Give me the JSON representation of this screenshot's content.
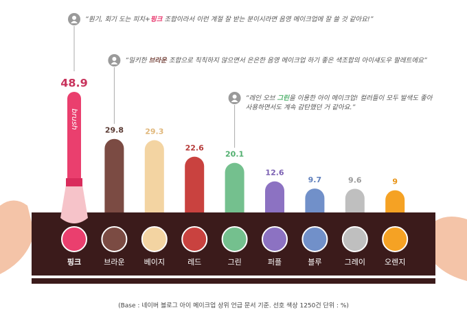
{
  "chart_data": {
    "type": "bar",
    "categories": [
      "핑크",
      "브라운",
      "베이지",
      "레드",
      "그린",
      "퍼플",
      "블루",
      "그레이",
      "오렌지"
    ],
    "values": [
      48.9,
      29.8,
      29.3,
      22.6,
      20.1,
      12.6,
      9.7,
      9.6,
      9.0
    ],
    "colors": [
      "#ea3f6e",
      "#7b4b43",
      "#f3d4a2",
      "#c9423f",
      "#74c08e",
      "#8c72c2",
      "#7190c9",
      "#bfbfbf",
      "#f5a224"
    ],
    "label_colors": [
      "#c8335c",
      "#5a3a33",
      "#e0b77a",
      "#b53a38",
      "#4fae6d",
      "#7a5fb2",
      "#5f7fbc",
      "#9a9a9a",
      "#e89314"
    ],
    "annotations": [
      {
        "before": "“훤기, 회기 도는 피치+",
        "highlight": "핑크",
        "after": " 조합이라서 이런 계절 잘 받는 분이시라면 음영 메이크업에 잘 쓸 것 같아요!”",
        "color": "#e8336a"
      },
      {
        "before": "“밀키한 ",
        "highlight": "브라운",
        "after": " 조합으로 칙칙하지 않으면서 은은한 음영 메이크업 하기 좋은 색조합의 아이섀도우 팔레트에요”",
        "color": "#7a4a42"
      },
      {
        "before": "“레인 오브 ",
        "highlight": "그린",
        "after": "을 이용한 아이 메이크업! 컬러들이 모두 발색도 좋아",
        "line2": "사용하면서도 계속 감탄했던 거 같아요.”",
        "color": "#4caf6a"
      }
    ],
    "brush_text": "brush",
    "footnote": "(Base : 네이버 블로그 아이 메이크업 상위 언급 문서 기준. 선호 색상 1250건 단위 : %)"
  }
}
